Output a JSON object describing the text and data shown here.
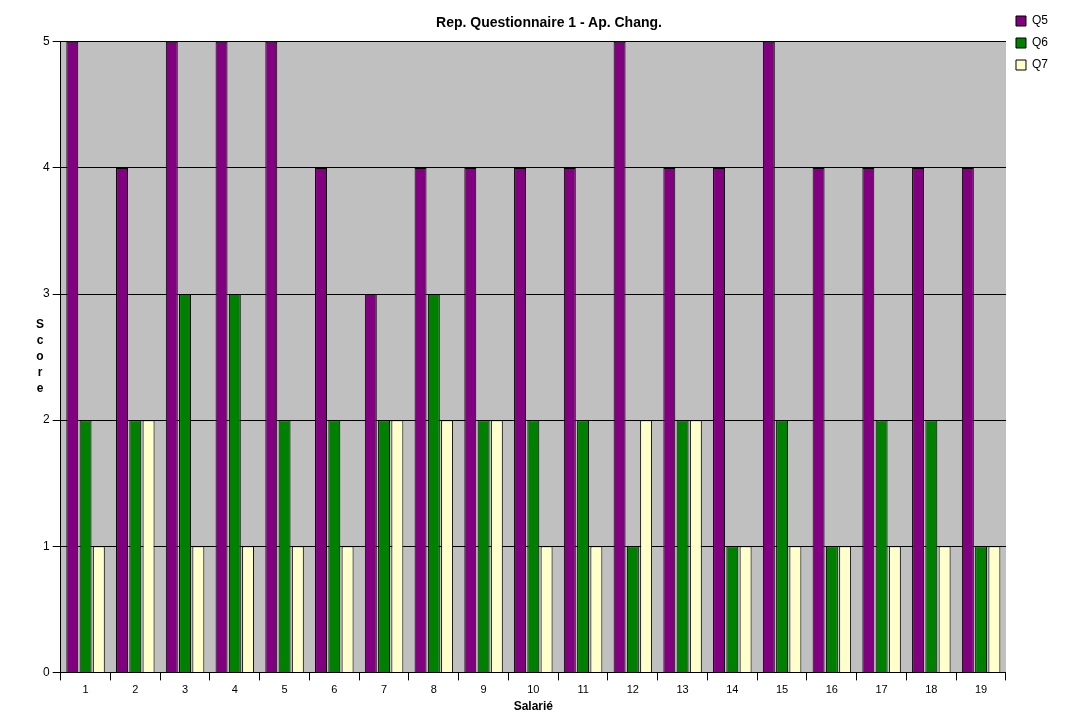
{
  "chart_data": {
    "type": "bar",
    "title": "Rep. Questionnaire 1 - Ap. Chang.",
    "xlabel": "Salarié",
    "ylabel": "Score",
    "categories": [
      "1",
      "2",
      "3",
      "4",
      "5",
      "6",
      "7",
      "8",
      "9",
      "10",
      "11",
      "12",
      "13",
      "14",
      "15",
      "16",
      "17",
      "18",
      "19"
    ],
    "series": [
      {
        "name": "Q5",
        "color": "#800080",
        "values": [
          5,
          4,
          5,
          5,
          5,
          4,
          3,
          4,
          4,
          4,
          4,
          5,
          4,
          4,
          5,
          4,
          4,
          4,
          4
        ]
      },
      {
        "name": "Q6",
        "color": "#008000",
        "values": [
          2,
          2,
          3,
          3,
          2,
          2,
          2,
          3,
          2,
          2,
          2,
          1,
          2,
          1,
          2,
          1,
          2,
          2,
          1
        ]
      },
      {
        "name": "Q7",
        "color": "#ffffcc",
        "values": [
          1,
          2,
          1,
          1,
          1,
          1,
          2,
          2,
          2,
          1,
          1,
          2,
          2,
          1,
          1,
          1,
          1,
          1,
          1
        ]
      }
    ],
    "ylim": [
      0,
      5
    ],
    "yticks": [
      0,
      1,
      2,
      3,
      4,
      5
    ],
    "grid": "y",
    "legend": "top right"
  }
}
